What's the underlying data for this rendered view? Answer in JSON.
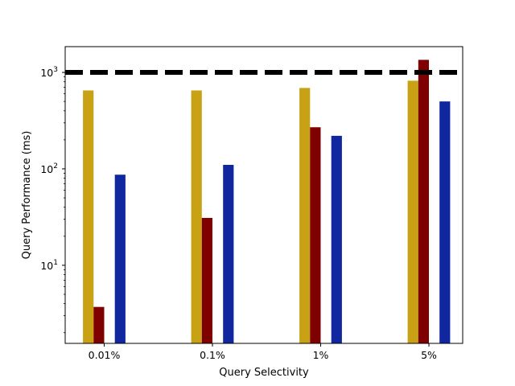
{
  "chart_data": {
    "type": "bar",
    "title": "",
    "xlabel": "Query Selectivity",
    "ylabel": "Query Performance (ms)",
    "yscale": "log",
    "ylim": [
      1.55,
      1850
    ],
    "yticks": [
      {
        "value": 10,
        "base": "10",
        "exp": "1"
      },
      {
        "value": 100,
        "base": "10",
        "exp": "2"
      },
      {
        "value": 1000,
        "base": "10",
        "exp": "3"
      }
    ],
    "categories": [
      "0.01%",
      "0.1%",
      "1%",
      "5%"
    ],
    "series": [
      {
        "color": "#c9a115",
        "values": [
          650,
          650,
          690,
          820
        ]
      },
      {
        "color": "#7f0000",
        "values": [
          3.7,
          31,
          270,
          1350
        ]
      },
      {
        "color": "#fffffe",
        "values": [
          null,
          null,
          null,
          null
        ]
      },
      {
        "color": "#1127a0",
        "values": [
          87,
          110,
          220,
          500
        ]
      }
    ],
    "reference_line": {
      "value": 1000,
      "color": "#000000",
      "style": "dashed"
    },
    "grid": false,
    "legend": "none"
  }
}
